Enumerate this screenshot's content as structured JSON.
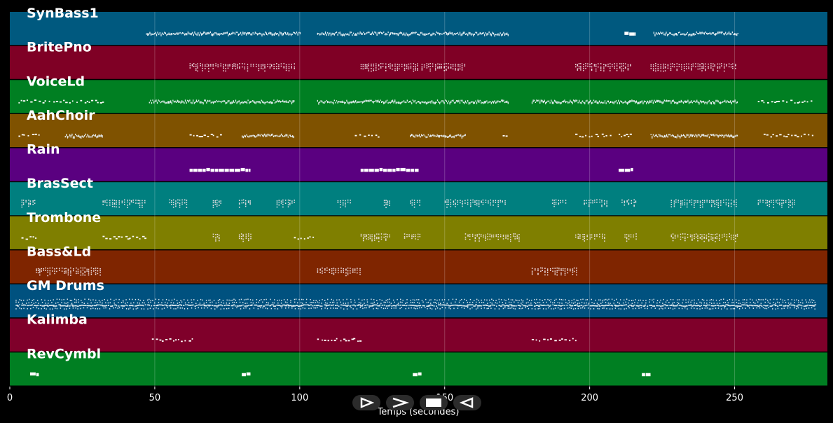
{
  "chart_data": {
    "type": "piano-roll",
    "xlabel": "Temps (secondes)",
    "xlim": [
      0,
      282
    ],
    "xticks": [
      0,
      50,
      100,
      150,
      200,
      250
    ],
    "grid": true,
    "tracks": [
      {
        "name": "SynBass1",
        "color": "#00597f",
        "segments": [
          [
            47,
            100,
            "dense"
          ],
          [
            106,
            172,
            "dense"
          ],
          [
            212,
            216,
            "block"
          ],
          [
            222,
            251,
            "dense"
          ]
        ]
      },
      {
        "name": "BritePno",
        "color": "#7f0025",
        "segments": [
          [
            62,
            82,
            "chord"
          ],
          [
            83,
            98,
            "chord"
          ],
          [
            121,
            141,
            "chord"
          ],
          [
            142,
            157,
            "chord"
          ],
          [
            195,
            214,
            "chord"
          ],
          [
            221,
            251,
            "chord"
          ]
        ]
      },
      {
        "name": "VoiceLd",
        "color": "#007f22",
        "segments": [
          [
            3,
            32,
            "sparse"
          ],
          [
            48,
            98,
            "dense"
          ],
          [
            106,
            172,
            "dense"
          ],
          [
            180,
            251,
            "dense"
          ],
          [
            258,
            277,
            "sparse"
          ]
        ]
      },
      {
        "name": "AahChoir",
        "color": "#7f5200",
        "segments": [
          [
            3,
            10,
            "sparse"
          ],
          [
            19,
            32,
            "dense"
          ],
          [
            62,
            73,
            "sparse"
          ],
          [
            80,
            98,
            "dense"
          ],
          [
            119,
            128,
            "sparse"
          ],
          [
            138,
            157,
            "dense"
          ],
          [
            170,
            171,
            "sparse"
          ],
          [
            195,
            207,
            "sparse"
          ],
          [
            210,
            214,
            "sparse"
          ],
          [
            221,
            251,
            "dense"
          ],
          [
            260,
            277,
            "sparse"
          ]
        ]
      },
      {
        "name": "Rain",
        "color": "#5a0080",
        "segments": [
          [
            62,
            83,
            "block"
          ],
          [
            121,
            141,
            "block"
          ],
          [
            210,
            215,
            "block"
          ]
        ]
      },
      {
        "name": "BrasSect",
        "color": "#007f7f",
        "segments": [
          [
            4,
            9,
            "chord"
          ],
          [
            32,
            47,
            "chord"
          ],
          [
            55,
            61,
            "chord"
          ],
          [
            70,
            73,
            "chord"
          ],
          [
            79,
            83,
            "chord"
          ],
          [
            92,
            98,
            "chord"
          ],
          [
            113,
            118,
            "chord"
          ],
          [
            129,
            131,
            "chord"
          ],
          [
            138,
            142,
            "chord"
          ],
          [
            150,
            171,
            "chord"
          ],
          [
            187,
            192,
            "chord"
          ],
          [
            198,
            206,
            "chord"
          ],
          [
            211,
            216,
            "chord"
          ],
          [
            228,
            251,
            "chord"
          ],
          [
            258,
            271,
            "chord"
          ]
        ]
      },
      {
        "name": "Trombone",
        "color": "#7f7f00",
        "segments": [
          [
            4,
            9,
            "sparse"
          ],
          [
            32,
            47,
            "sparse"
          ],
          [
            70,
            73,
            "chord"
          ],
          [
            79,
            83,
            "chord"
          ],
          [
            98,
            105,
            "sparse"
          ],
          [
            121,
            131,
            "chord"
          ],
          [
            136,
            142,
            "chord"
          ],
          [
            157,
            176,
            "chord"
          ],
          [
            195,
            205,
            "chord"
          ],
          [
            212,
            216,
            "chord"
          ],
          [
            228,
            251,
            "chord"
          ]
        ]
      },
      {
        "name": "Bass&Ld",
        "color": "#7f2500",
        "segments": [
          [
            9,
            32,
            "chord"
          ],
          [
            106,
            121,
            "chord"
          ],
          [
            180,
            196,
            "chord"
          ]
        ]
      },
      {
        "name": "GM Drums",
        "color": "#00517f",
        "segments": [
          [
            2,
            278,
            "drums"
          ]
        ]
      },
      {
        "name": "Kalimba",
        "color": "#7f002a",
        "segments": [
          [
            49,
            63,
            "sparse"
          ],
          [
            106,
            121,
            "sparse"
          ],
          [
            180,
            196,
            "sparse"
          ]
        ]
      },
      {
        "name": "RevCymbl",
        "color": "#007f22",
        "segments": [
          [
            7,
            10,
            "block"
          ],
          [
            80,
            83,
            "block"
          ],
          [
            139,
            142,
            "block"
          ],
          [
            218,
            221,
            "block"
          ]
        ]
      }
    ]
  },
  "controls": [
    {
      "name": "play-forward-button",
      "icon": "play-outline-icon"
    },
    {
      "name": "fast-forward-button",
      "icon": "chevron-right-icon"
    },
    {
      "name": "stop-button",
      "icon": "stop-icon"
    },
    {
      "name": "play-reverse-button",
      "icon": "play-reverse-icon"
    }
  ]
}
